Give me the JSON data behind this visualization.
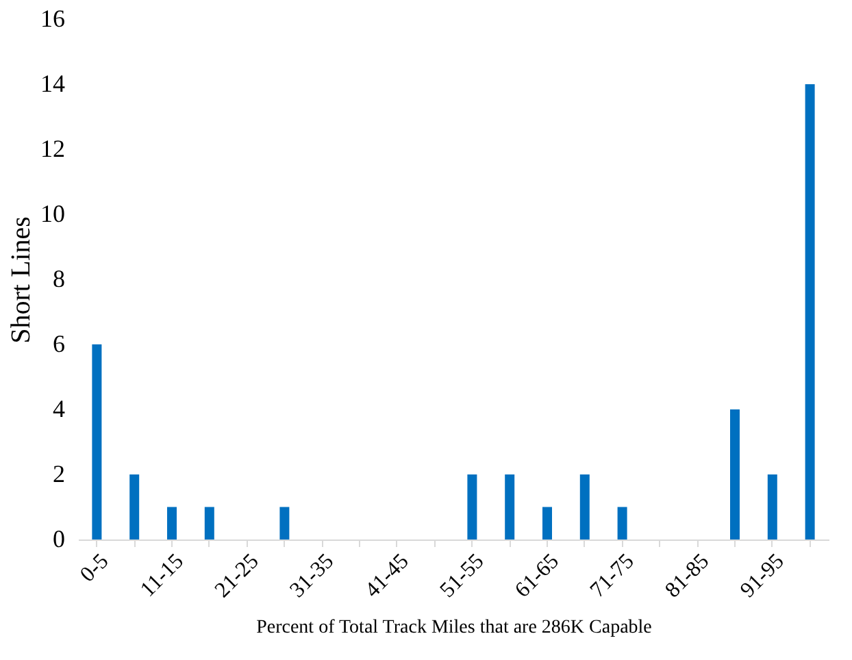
{
  "chart_data": {
    "type": "bar",
    "categories": [
      "0-5",
      null,
      "11-15",
      null,
      "21-25",
      null,
      "31-35",
      null,
      "41-45",
      null,
      "51-55",
      null,
      "61-65",
      null,
      "71-75",
      null,
      "81-85",
      null,
      "91-95",
      null
    ],
    "values": [
      6,
      2,
      1,
      1,
      0,
      1,
      0,
      0,
      0,
      0,
      2,
      2,
      1,
      2,
      1,
      0,
      0,
      4,
      2,
      14
    ],
    "color": "#0070c0",
    "xlabel": "Percent of Total Track Miles that are 286K Capable",
    "ylabel": "Short Lines",
    "ylim": [
      0,
      16
    ],
    "yticks": [
      0,
      2,
      4,
      6,
      8,
      10,
      12,
      14,
      16
    ],
    "grid": false
  }
}
